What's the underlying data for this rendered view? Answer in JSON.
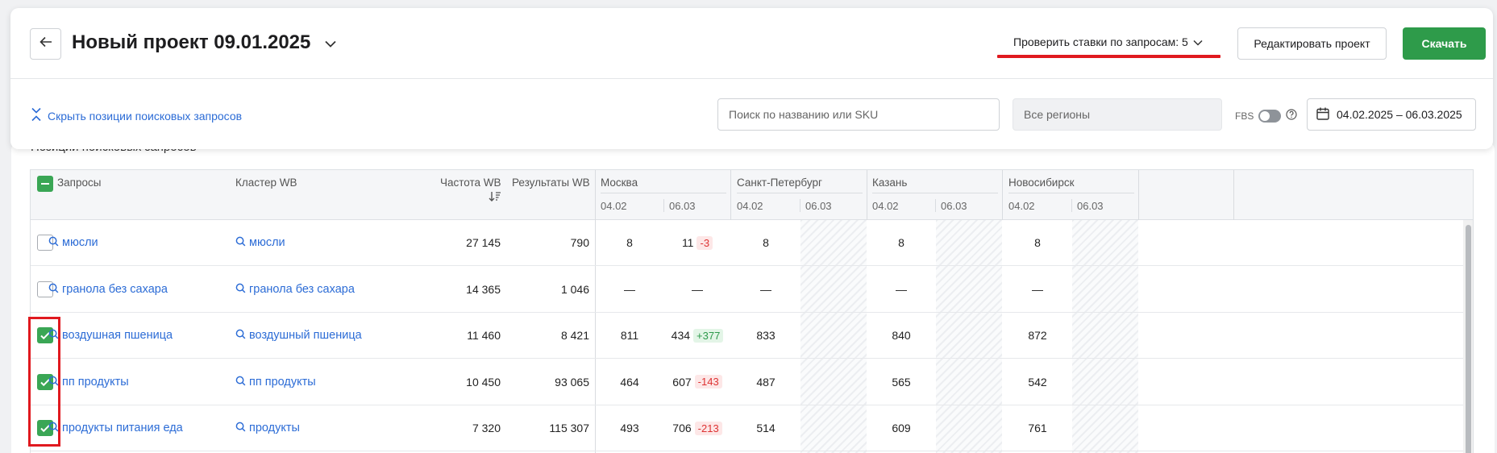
{
  "header": {
    "title": "Новый проект 09.01.2025",
    "check_bids": "Проверить ставки по запросам: 5",
    "edit_project": "Редактировать проект",
    "download": "Скачать"
  },
  "toolbar": {
    "hide_positions": "Скрыть позиции поисковых запросов",
    "search_placeholder": "Поиск по названию или SKU",
    "regions": "Все регионы",
    "fbs_label": "FBS",
    "date_range": "04.02.2025 – 06.03.2025"
  },
  "section_title": "Позиции поисковых запросов",
  "table": {
    "columns": {
      "queries": "Запросы",
      "cluster": "Кластер WB",
      "frequency": "Частота WB",
      "results": "Результаты WB"
    },
    "regions": [
      "Москва",
      "Санкт-Петербург",
      "Казань",
      "Новосибирск"
    ],
    "dates": [
      "04.02",
      "06.03"
    ],
    "rows": [
      {
        "query": "мюсли",
        "cluster": "мюсли",
        "frequency": "27 145",
        "results": "790",
        "checked": false,
        "msk_a": "8",
        "msk_b": "11",
        "msk_delta": "-3",
        "msk_delta_type": "neg",
        "spb": "8",
        "kzn": "8",
        "nsk": "8"
      },
      {
        "query": "гранола без сахара",
        "cluster": "гранола без сахара",
        "frequency": "14 365",
        "results": "1 046",
        "checked": false,
        "msk_a": "—",
        "msk_b": "—",
        "msk_delta": "",
        "msk_delta_type": "",
        "spb": "—",
        "kzn": "—",
        "nsk": "—"
      },
      {
        "query": "воздушная пшеница",
        "cluster": "воздушный пшеница",
        "frequency": "11 460",
        "results": "8 421",
        "checked": true,
        "msk_a": "811",
        "msk_b": "434",
        "msk_delta": "+377",
        "msk_delta_type": "pos",
        "spb": "833",
        "kzn": "840",
        "nsk": "872"
      },
      {
        "query": "пп продукты",
        "cluster": "пп продукты",
        "frequency": "10 450",
        "results": "93 065",
        "checked": true,
        "msk_a": "464",
        "msk_b": "607",
        "msk_delta": "-143",
        "msk_delta_type": "neg",
        "spb": "487",
        "kzn": "565",
        "nsk": "542"
      },
      {
        "query": "продукты питания еда",
        "cluster": "продукты",
        "frequency": "7 320",
        "results": "115 307",
        "checked": true,
        "msk_a": "493",
        "msk_b": "706",
        "msk_delta": "-213",
        "msk_delta_type": "neg",
        "spb": "514",
        "kzn": "609",
        "nsk": "761"
      }
    ]
  },
  "colors": {
    "accent_green": "#2e9b4a",
    "link_blue": "#2c6cd6",
    "highlight_red": "#e0191f"
  },
  "icons": [
    "back-arrow-icon",
    "chevron-down-icon",
    "collapse-icon",
    "help-icon",
    "calendar-icon",
    "search-icon",
    "sort-icon",
    "check-icon"
  ]
}
